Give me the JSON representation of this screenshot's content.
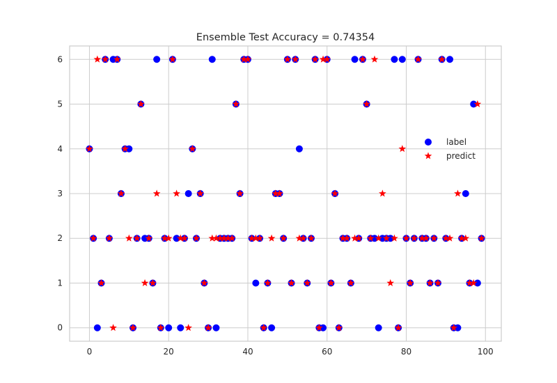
{
  "chart_data": {
    "type": "scatter",
    "title": "Ensemble Test Accuracy = 0.74354",
    "xlabel": "",
    "ylabel": "",
    "xlim": [
      -5,
      104
    ],
    "ylim": [
      -0.3,
      6.3
    ],
    "xticks": [
      0,
      20,
      40,
      60,
      80,
      100
    ],
    "yticks": [
      0,
      1,
      2,
      3,
      4,
      5,
      6
    ],
    "grid": true,
    "legend_position": "center-right",
    "x": [
      0,
      1,
      2,
      3,
      4,
      5,
      6,
      7,
      8,
      9,
      10,
      11,
      12,
      13,
      14,
      15,
      16,
      17,
      18,
      19,
      20,
      21,
      22,
      23,
      24,
      25,
      26,
      27,
      28,
      29,
      30,
      31,
      32,
      33,
      34,
      35,
      36,
      37,
      38,
      39,
      40,
      41,
      42,
      43,
      44,
      45,
      46,
      47,
      48,
      49,
      50,
      51,
      52,
      53,
      54,
      55,
      56,
      57,
      58,
      59,
      60,
      61,
      62,
      63,
      64,
      65,
      66,
      67,
      68,
      69,
      70,
      71,
      72,
      73,
      74,
      75,
      76,
      77,
      78,
      79,
      80,
      81,
      82,
      83,
      84,
      85,
      86,
      87,
      88,
      89,
      90,
      91,
      92,
      93,
      94,
      95,
      96,
      97,
      98,
      99
    ],
    "series": [
      {
        "name": "label",
        "color": "#0000ff",
        "marker": "circle",
        "values": [
          4,
          2,
          0,
          1,
          6,
          2,
          6,
          6,
          3,
          4,
          4,
          0,
          2,
          5,
          2,
          2,
          1,
          6,
          0,
          2,
          0,
          6,
          2,
          0,
          2,
          3,
          4,
          2,
          3,
          1,
          0,
          6,
          0,
          2,
          2,
          2,
          2,
          5,
          3,
          6,
          6,
          2,
          1,
          2,
          0,
          1,
          0,
          3,
          3,
          2,
          6,
          1,
          6,
          4,
          2,
          1,
          2,
          6,
          0,
          0,
          6,
          1,
          3,
          0,
          2,
          2,
          1,
          6,
          2,
          6,
          5,
          2,
          2,
          0,
          2,
          2,
          2,
          6,
          0,
          6,
          2,
          1,
          2,
          6,
          2,
          2,
          1,
          2,
          1,
          6,
          2,
          6,
          0,
          0,
          2,
          3,
          1,
          5,
          1,
          2
        ]
      },
      {
        "name": "predict",
        "color": "#ff0000",
        "marker": "star",
        "values": [
          4,
          2,
          6,
          1,
          6,
          2,
          0,
          6,
          3,
          4,
          2,
          0,
          2,
          5,
          1,
          2,
          1,
          3,
          0,
          2,
          2,
          6,
          3,
          2,
          2,
          0,
          4,
          2,
          3,
          1,
          0,
          2,
          2,
          2,
          2,
          2,
          2,
          5,
          3,
          6,
          6,
          2,
          2,
          2,
          0,
          1,
          2,
          3,
          3,
          2,
          6,
          1,
          6,
          2,
          2,
          1,
          2,
          6,
          0,
          6,
          6,
          1,
          3,
          0,
          2,
          2,
          1,
          2,
          2,
          6,
          5,
          2,
          6,
          2,
          3,
          2,
          1,
          2,
          0,
          4,
          2,
          1,
          2,
          6,
          2,
          2,
          1,
          2,
          1,
          6,
          2,
          2,
          0,
          3,
          2,
          2,
          1,
          1,
          5,
          2
        ]
      }
    ]
  }
}
